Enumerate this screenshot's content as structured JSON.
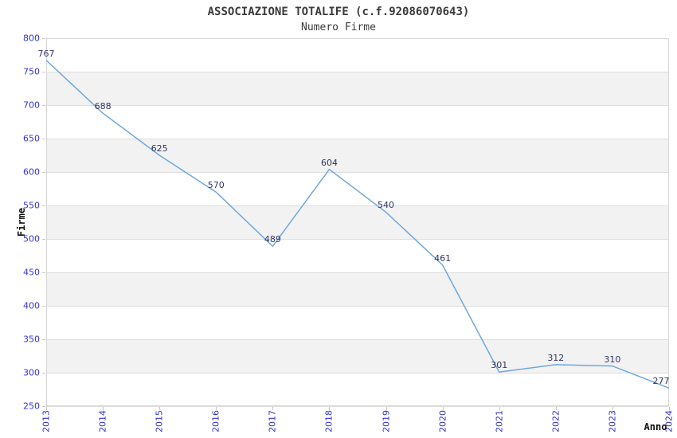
{
  "chart_data": {
    "type": "line",
    "title": "ASSOCIAZIONE TOTALIFE (c.f.92086070643)",
    "subtitle": "Numero Firme",
    "xlabel": "Anno",
    "ylabel": "Firme",
    "categories": [
      "2013",
      "2014",
      "2015",
      "2016",
      "2017",
      "2018",
      "2019",
      "2020",
      "2021",
      "2022",
      "2023",
      "2024"
    ],
    "values": [
      767,
      688,
      625,
      570,
      489,
      604,
      540,
      461,
      301,
      312,
      310,
      277
    ],
    "ylim": [
      250,
      800
    ],
    "ytick_step": 50,
    "yticks": [
      250,
      300,
      350,
      400,
      450,
      500,
      550,
      600,
      650,
      700,
      750,
      800
    ],
    "grid": "horizontal-bands",
    "legend": false,
    "colors": {
      "line": "#6FA8DC",
      "axis_tick_text": "#3434D6",
      "data_label_text": "#333366",
      "gridline": "#DDDDDD",
      "band_fill": "#F2F2F2",
      "plot_border": "#D6D6D6",
      "tick_mark": "#C8C8C8",
      "title_text": "#3A3A3A",
      "background": "#FFFFFF"
    }
  }
}
